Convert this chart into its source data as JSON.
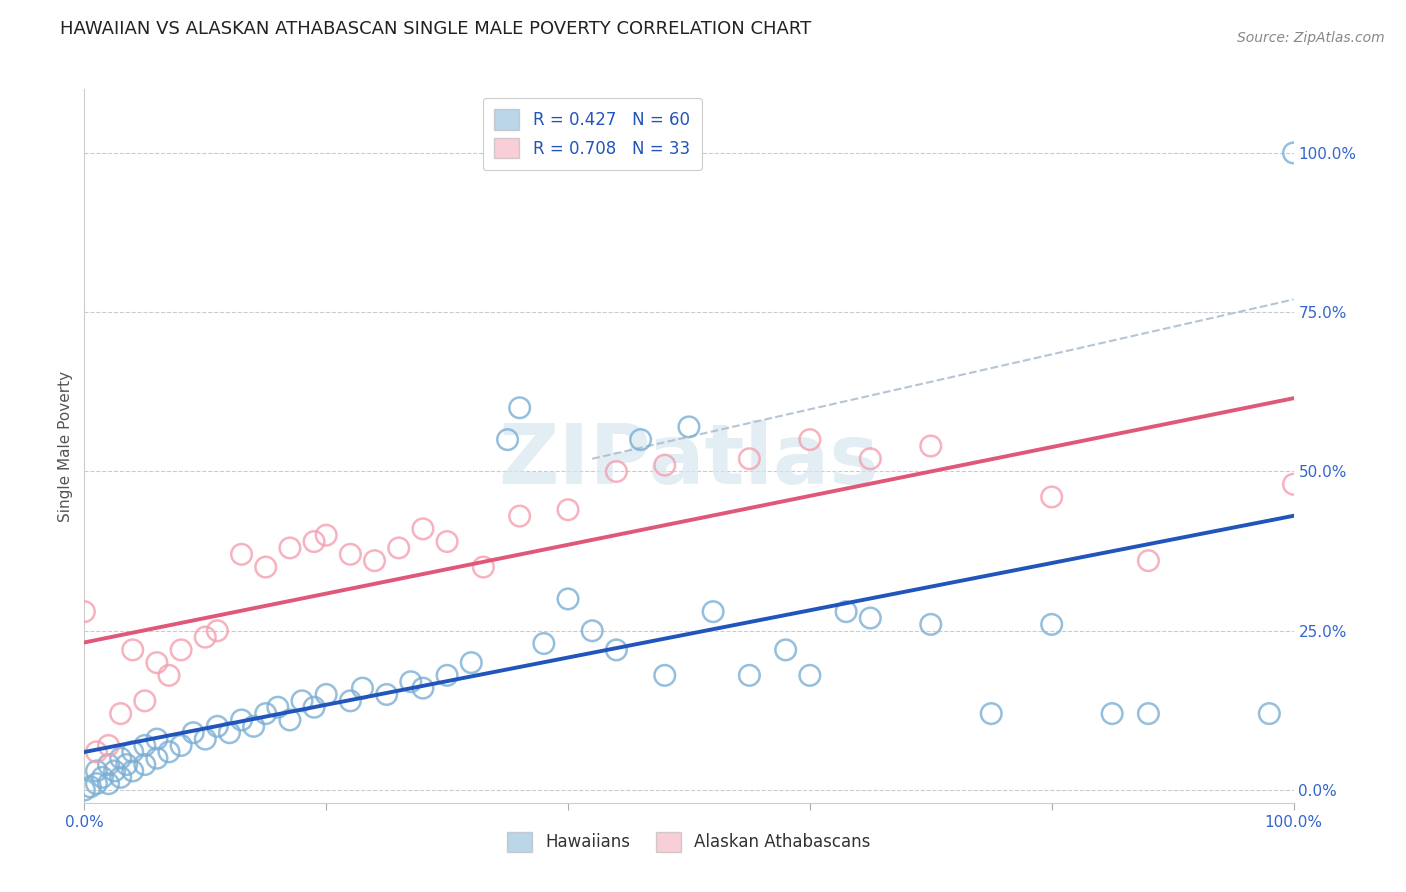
{
  "title": "HAWAIIAN VS ALASKAN ATHABASCAN SINGLE MALE POVERTY CORRELATION CHART",
  "source": "Source: ZipAtlas.com",
  "ylabel": "Single Male Poverty",
  "ytick_labels": [
    "0.0%",
    "25.0%",
    "50.0%",
    "75.0%",
    "100.0%"
  ],
  "ytick_positions": [
    0.0,
    0.25,
    0.5,
    0.75,
    1.0
  ],
  "xlim": [
    0.0,
    1.0
  ],
  "ylim": [
    -0.02,
    1.1
  ],
  "hawaiian_color": "#7bafd4",
  "athabascan_color": "#f4a0b0",
  "background_color": "#ffffff",
  "hawaiian_points": [
    [
      0.0,
      0.0
    ],
    [
      0.005,
      0.005
    ],
    [
      0.01,
      0.01
    ],
    [
      0.01,
      0.03
    ],
    [
      0.015,
      0.02
    ],
    [
      0.02,
      0.01
    ],
    [
      0.02,
      0.04
    ],
    [
      0.025,
      0.03
    ],
    [
      0.03,
      0.02
    ],
    [
      0.03,
      0.05
    ],
    [
      0.035,
      0.04
    ],
    [
      0.04,
      0.03
    ],
    [
      0.04,
      0.06
    ],
    [
      0.05,
      0.04
    ],
    [
      0.05,
      0.07
    ],
    [
      0.06,
      0.05
    ],
    [
      0.06,
      0.08
    ],
    [
      0.07,
      0.06
    ],
    [
      0.08,
      0.07
    ],
    [
      0.09,
      0.09
    ],
    [
      0.1,
      0.08
    ],
    [
      0.11,
      0.1
    ],
    [
      0.12,
      0.09
    ],
    [
      0.13,
      0.11
    ],
    [
      0.14,
      0.1
    ],
    [
      0.15,
      0.12
    ],
    [
      0.16,
      0.13
    ],
    [
      0.17,
      0.11
    ],
    [
      0.18,
      0.14
    ],
    [
      0.19,
      0.13
    ],
    [
      0.2,
      0.15
    ],
    [
      0.22,
      0.14
    ],
    [
      0.23,
      0.16
    ],
    [
      0.25,
      0.15
    ],
    [
      0.27,
      0.17
    ],
    [
      0.28,
      0.16
    ],
    [
      0.3,
      0.18
    ],
    [
      0.32,
      0.2
    ],
    [
      0.35,
      0.55
    ],
    [
      0.36,
      0.6
    ],
    [
      0.38,
      0.23
    ],
    [
      0.4,
      0.3
    ],
    [
      0.42,
      0.25
    ],
    [
      0.44,
      0.22
    ],
    [
      0.46,
      0.55
    ],
    [
      0.48,
      0.18
    ],
    [
      0.5,
      0.57
    ],
    [
      0.52,
      0.28
    ],
    [
      0.55,
      0.18
    ],
    [
      0.58,
      0.22
    ],
    [
      0.6,
      0.18
    ],
    [
      0.63,
      0.28
    ],
    [
      0.65,
      0.27
    ],
    [
      0.7,
      0.26
    ],
    [
      0.75,
      0.12
    ],
    [
      0.8,
      0.26
    ],
    [
      0.85,
      0.12
    ],
    [
      0.88,
      0.12
    ],
    [
      0.98,
      0.12
    ],
    [
      1.0,
      1.0
    ]
  ],
  "athabascan_points": [
    [
      0.0,
      0.28
    ],
    [
      0.01,
      0.06
    ],
    [
      0.02,
      0.07
    ],
    [
      0.03,
      0.12
    ],
    [
      0.04,
      0.22
    ],
    [
      0.05,
      0.14
    ],
    [
      0.06,
      0.2
    ],
    [
      0.07,
      0.18
    ],
    [
      0.08,
      0.22
    ],
    [
      0.1,
      0.24
    ],
    [
      0.11,
      0.25
    ],
    [
      0.13,
      0.37
    ],
    [
      0.15,
      0.35
    ],
    [
      0.17,
      0.38
    ],
    [
      0.19,
      0.39
    ],
    [
      0.2,
      0.4
    ],
    [
      0.22,
      0.37
    ],
    [
      0.24,
      0.36
    ],
    [
      0.26,
      0.38
    ],
    [
      0.28,
      0.41
    ],
    [
      0.3,
      0.39
    ],
    [
      0.33,
      0.35
    ],
    [
      0.36,
      0.43
    ],
    [
      0.4,
      0.44
    ],
    [
      0.44,
      0.5
    ],
    [
      0.48,
      0.51
    ],
    [
      0.55,
      0.52
    ],
    [
      0.6,
      0.55
    ],
    [
      0.65,
      0.52
    ],
    [
      0.7,
      0.54
    ],
    [
      0.8,
      0.46
    ],
    [
      0.88,
      0.36
    ],
    [
      1.0,
      0.48
    ]
  ],
  "dashed_line_start_x": 0.42,
  "dashed_line_start_y": 0.52,
  "dashed_line_end_x": 1.0,
  "dashed_line_end_y": 0.77
}
